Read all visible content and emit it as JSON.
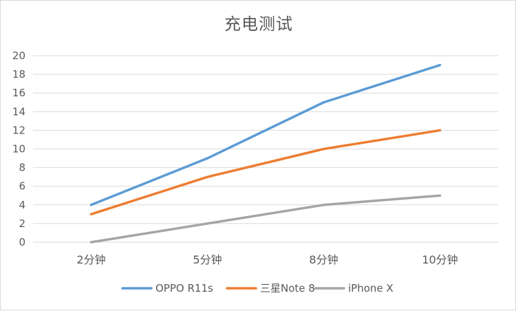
{
  "chart_data": {
    "type": "line",
    "title": "充电测试",
    "categories": [
      "2分钟",
      "5分钟",
      "8分钟",
      "10分钟"
    ],
    "yticks": [
      0,
      2,
      4,
      6,
      8,
      10,
      12,
      14,
      16,
      18,
      20
    ],
    "ylim": [
      0,
      20
    ],
    "grid": true,
    "legend_position": "bottom",
    "series": [
      {
        "name": "OPPO R11s",
        "values": [
          4,
          9,
          15,
          19
        ],
        "color": "#5b9bd5"
      },
      {
        "name": "三星Note 8",
        "values": [
          3,
          7,
          10,
          12
        ],
        "color": "#ed7d31"
      },
      {
        "name": "iPhone X",
        "values": [
          0,
          2,
          4,
          5
        ],
        "color": "#a5a5a5"
      }
    ]
  }
}
